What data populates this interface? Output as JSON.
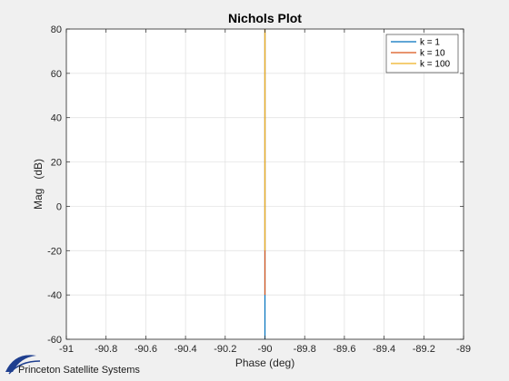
{
  "chart_data": {
    "type": "line",
    "title": "Nichols Plot",
    "xlabel": "Phase (deg)",
    "ylabel": "Mag   (dB)",
    "xlim": [
      -91,
      -89
    ],
    "ylim": [
      -60,
      80
    ],
    "xticks": [
      -91,
      -90.8,
      -90.6,
      -90.4,
      -90.2,
      -90,
      -89.8,
      -89.6,
      -89.4,
      -89.2,
      -89
    ],
    "xtick_labels": [
      "-91",
      "-90.8",
      "-90.6",
      "-90.4",
      "-90.2",
      "-90",
      "-89.8",
      "-89.6",
      "-89.4",
      "-89.2",
      "-89"
    ],
    "yticks": [
      -60,
      -40,
      -20,
      0,
      20,
      40,
      60,
      80
    ],
    "ytick_labels": [
      "-60",
      "-40",
      "-20",
      "0",
      "20",
      "40",
      "60",
      "80"
    ],
    "grid": true,
    "legend_position": "top-right",
    "series": [
      {
        "name": "k = 1",
        "color": "#0072bd",
        "x": [
          -90,
          -90
        ],
        "y": [
          -60,
          80
        ]
      },
      {
        "name": "k = 10",
        "color": "#d95319",
        "x": [
          -90,
          -90
        ],
        "y": [
          -40,
          80
        ]
      },
      {
        "name": "k = 100",
        "color": "#edb120",
        "x": [
          -90,
          -90
        ],
        "y": [
          -20,
          80
        ]
      }
    ]
  },
  "branding": {
    "company": "Princeton Satellite Systems"
  }
}
